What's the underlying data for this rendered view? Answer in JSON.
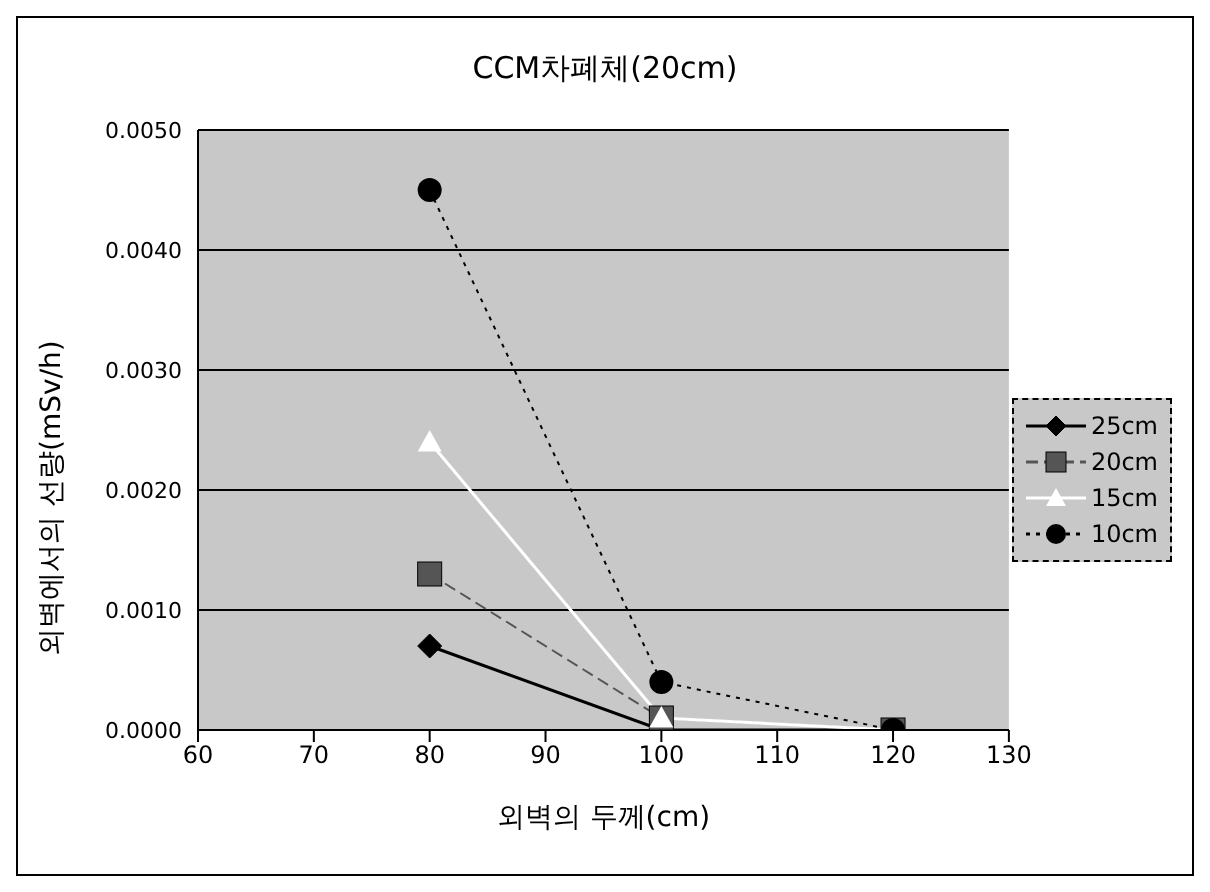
{
  "chart_data": {
    "type": "line",
    "title": "CCM차폐체(20cm)",
    "xlabel": "외벽의 두께(cm)",
    "ylabel": "외벽에서의 선량(mSv/h)",
    "x": [
      80,
      100,
      120
    ],
    "series": [
      {
        "name": "25cm",
        "color": "#000000",
        "values": [
          0.0007,
          0.0,
          0.0
        ],
        "marker": "diamond",
        "line_style": "solid"
      },
      {
        "name": "20cm",
        "color": "#555555",
        "values": [
          0.0013,
          0.0001,
          0.0
        ],
        "marker": "square",
        "line_style": "dashed"
      },
      {
        "name": "15cm",
        "color": "#ffffff",
        "values": [
          0.0024,
          0.0001,
          0.0
        ],
        "marker": "triangle",
        "line_style": "solid"
      },
      {
        "name": "10cm",
        "color": "#000000",
        "values": [
          0.0045,
          0.0004,
          0.0
        ],
        "marker": "circle",
        "line_style": "dotted"
      }
    ],
    "xlim": [
      60,
      130
    ],
    "xticks": [
      60,
      70,
      80,
      90,
      100,
      110,
      120,
      130
    ],
    "ylim": [
      0,
      0.005
    ],
    "yticks": [
      {
        "value": 0,
        "label": "0.0000"
      },
      {
        "value": 0.001,
        "label": "0.0010"
      },
      {
        "value": 0.002,
        "label": "0.0020"
      },
      {
        "value": 0.003,
        "label": "0.0030"
      },
      {
        "value": 0.004,
        "label": "0.0040"
      },
      {
        "value": 0.005,
        "label": "0.0050"
      }
    ],
    "grid": "y",
    "legend": "right"
  }
}
